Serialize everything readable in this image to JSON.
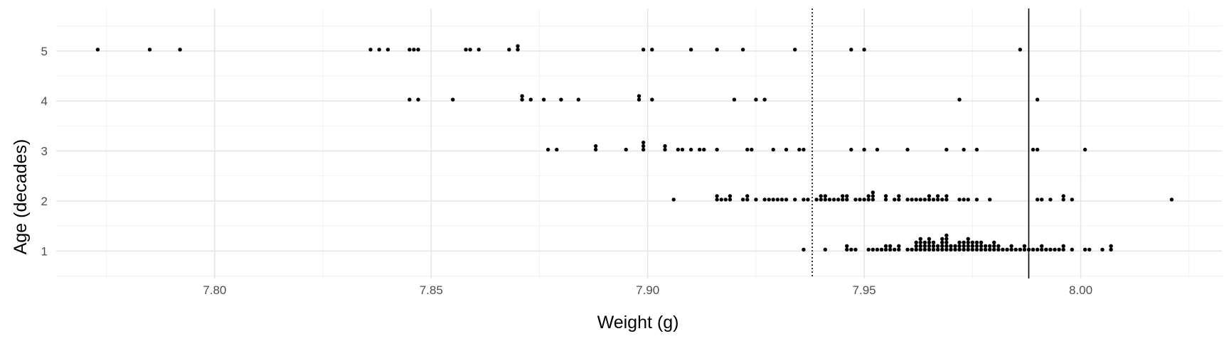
{
  "chart_data": {
    "type": "scatter",
    "title": "",
    "xlabel": "Weight (g)",
    "ylabel": "Age (decades)",
    "xlim": [
      7.7634,
      8.0326
    ],
    "ylim": [
      0.45,
      5.85
    ],
    "x_ticks": [
      {
        "value": 7.8,
        "label": "7.80"
      },
      {
        "value": 7.85,
        "label": "7.85"
      },
      {
        "value": 7.9,
        "label": "7.90"
      },
      {
        "value": 7.95,
        "label": "7.95"
      },
      {
        "value": 8.0,
        "label": "8.00"
      }
    ],
    "y_ticks": [
      {
        "value": 1,
        "label": "1"
      },
      {
        "value": 2,
        "label": "2"
      },
      {
        "value": 3,
        "label": "3"
      },
      {
        "value": 4,
        "label": "4"
      },
      {
        "value": 5,
        "label": "5"
      }
    ],
    "grid": true,
    "reference_lines": [
      {
        "axis": "x",
        "value": 7.938,
        "style": "dotted"
      },
      {
        "axis": "x",
        "value": 7.988,
        "style": "solid"
      }
    ],
    "series": [
      {
        "age": 5,
        "weights": [
          7.773,
          7.785,
          7.792,
          7.836,
          7.838,
          7.84,
          7.845,
          7.846,
          7.847,
          7.858,
          7.859,
          7.861,
          7.868,
          7.87,
          7.87,
          7.899,
          7.901,
          7.91,
          7.916,
          7.922,
          7.934,
          7.947,
          7.95,
          7.986
        ]
      },
      {
        "age": 4,
        "weights": [
          7.845,
          7.847,
          7.855,
          7.871,
          7.871,
          7.873,
          7.876,
          7.88,
          7.884,
          7.898,
          7.898,
          7.901,
          7.92,
          7.925,
          7.927,
          7.972,
          7.99
        ]
      },
      {
        "age": 3,
        "weights": [
          7.877,
          7.879,
          7.888,
          7.888,
          7.895,
          7.899,
          7.899,
          7.899,
          7.904,
          7.904,
          7.907,
          7.908,
          7.91,
          7.912,
          7.913,
          7.916,
          7.923,
          7.924,
          7.929,
          7.932,
          7.935,
          7.936,
          7.947,
          7.95,
          7.953,
          7.96,
          7.969,
          7.973,
          7.976,
          7.989,
          7.99,
          8.001
        ]
      },
      {
        "age": 2,
        "weights": [
          7.906,
          7.916,
          7.916,
          7.917,
          7.918,
          7.919,
          7.919,
          7.922,
          7.923,
          7.923,
          7.925,
          7.927,
          7.928,
          7.929,
          7.93,
          7.931,
          7.932,
          7.934,
          7.936,
          7.937,
          7.939,
          7.94,
          7.94,
          7.941,
          7.941,
          7.942,
          7.943,
          7.944,
          7.945,
          7.945,
          7.946,
          7.946,
          7.948,
          7.949,
          7.95,
          7.951,
          7.951,
          7.952,
          7.952,
          7.952,
          7.955,
          7.955,
          7.957,
          7.958,
          7.958,
          7.96,
          7.961,
          7.962,
          7.963,
          7.964,
          7.965,
          7.965,
          7.966,
          7.967,
          7.967,
          7.968,
          7.969,
          7.969,
          7.972,
          7.973,
          7.974,
          7.976,
          7.979,
          7.99,
          7.991,
          7.993,
          7.996,
          7.996,
          7.998,
          8.021
        ]
      },
      {
        "age": 1,
        "weights": [
          7.936,
          7.941,
          7.946,
          7.946,
          7.947,
          7.948,
          7.951,
          7.952,
          7.953,
          7.954,
          7.955,
          7.955,
          7.956,
          7.956,
          7.957,
          7.958,
          7.958,
          7.96,
          7.961,
          7.962,
          7.962,
          7.962,
          7.963,
          7.963,
          7.963,
          7.963,
          7.964,
          7.964,
          7.964,
          7.965,
          7.965,
          7.965,
          7.965,
          7.966,
          7.966,
          7.966,
          7.967,
          7.967,
          7.968,
          7.968,
          7.968,
          7.968,
          7.969,
          7.969,
          7.969,
          7.969,
          7.969,
          7.97,
          7.97,
          7.971,
          7.971,
          7.972,
          7.972,
          7.972,
          7.973,
          7.973,
          7.973,
          7.974,
          7.974,
          7.974,
          7.974,
          7.975,
          7.975,
          7.975,
          7.976,
          7.976,
          7.976,
          7.977,
          7.977,
          7.977,
          7.978,
          7.978,
          7.979,
          7.979,
          7.98,
          7.98,
          7.98,
          7.981,
          7.981,
          7.982,
          7.983,
          7.984,
          7.984,
          7.985,
          7.986,
          7.987,
          7.987,
          7.988,
          7.989,
          7.99,
          7.991,
          7.991,
          7.992,
          7.993,
          7.994,
          7.995,
          7.996,
          7.996,
          7.998,
          8.001,
          8.002,
          8.005,
          8.007,
          8.007
        ]
      }
    ]
  }
}
